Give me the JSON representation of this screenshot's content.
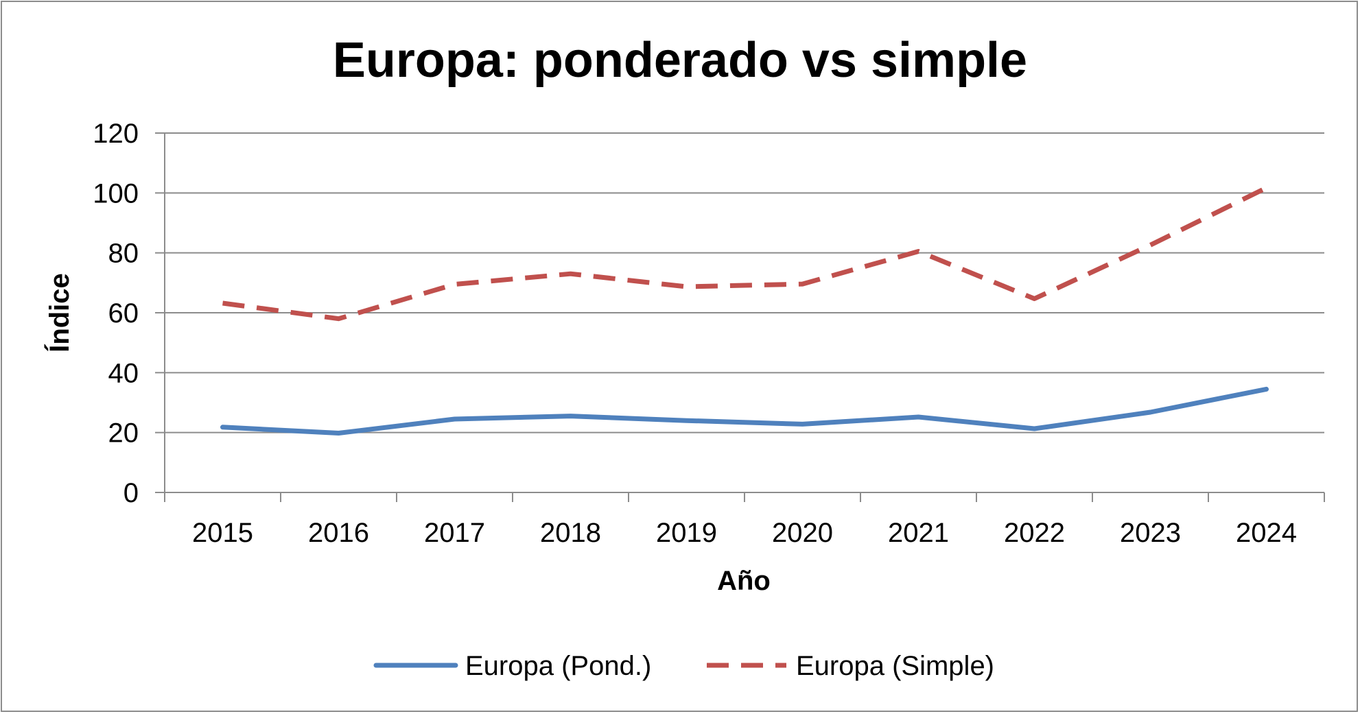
{
  "chart_data": {
    "type": "line",
    "title": "Europa: ponderado vs simple",
    "xlabel": "Año",
    "ylabel": "Índice",
    "categories": [
      "2015",
      "2016",
      "2017",
      "2018",
      "2019",
      "2020",
      "2021",
      "2022",
      "2023",
      "2024"
    ],
    "ylim": [
      0,
      120
    ],
    "yticks": [
      0,
      20,
      40,
      60,
      80,
      100,
      120
    ],
    "grid": true,
    "legend_position": "bottom",
    "series": [
      {
        "name": "Europa (Pond.)",
        "style": "solid",
        "color": "#4f81bd",
        "values": [
          21.8,
          19.8,
          24.5,
          25.5,
          24.0,
          22.8,
          25.2,
          21.3,
          26.8,
          34.5
        ]
      },
      {
        "name": "Europa (Simple)",
        "style": "dashed",
        "color": "#c0504d",
        "values": [
          63.2,
          58.0,
          69.5,
          73.0,
          68.7,
          69.6,
          80.5,
          64.7,
          82.6,
          101.7
        ]
      }
    ]
  }
}
